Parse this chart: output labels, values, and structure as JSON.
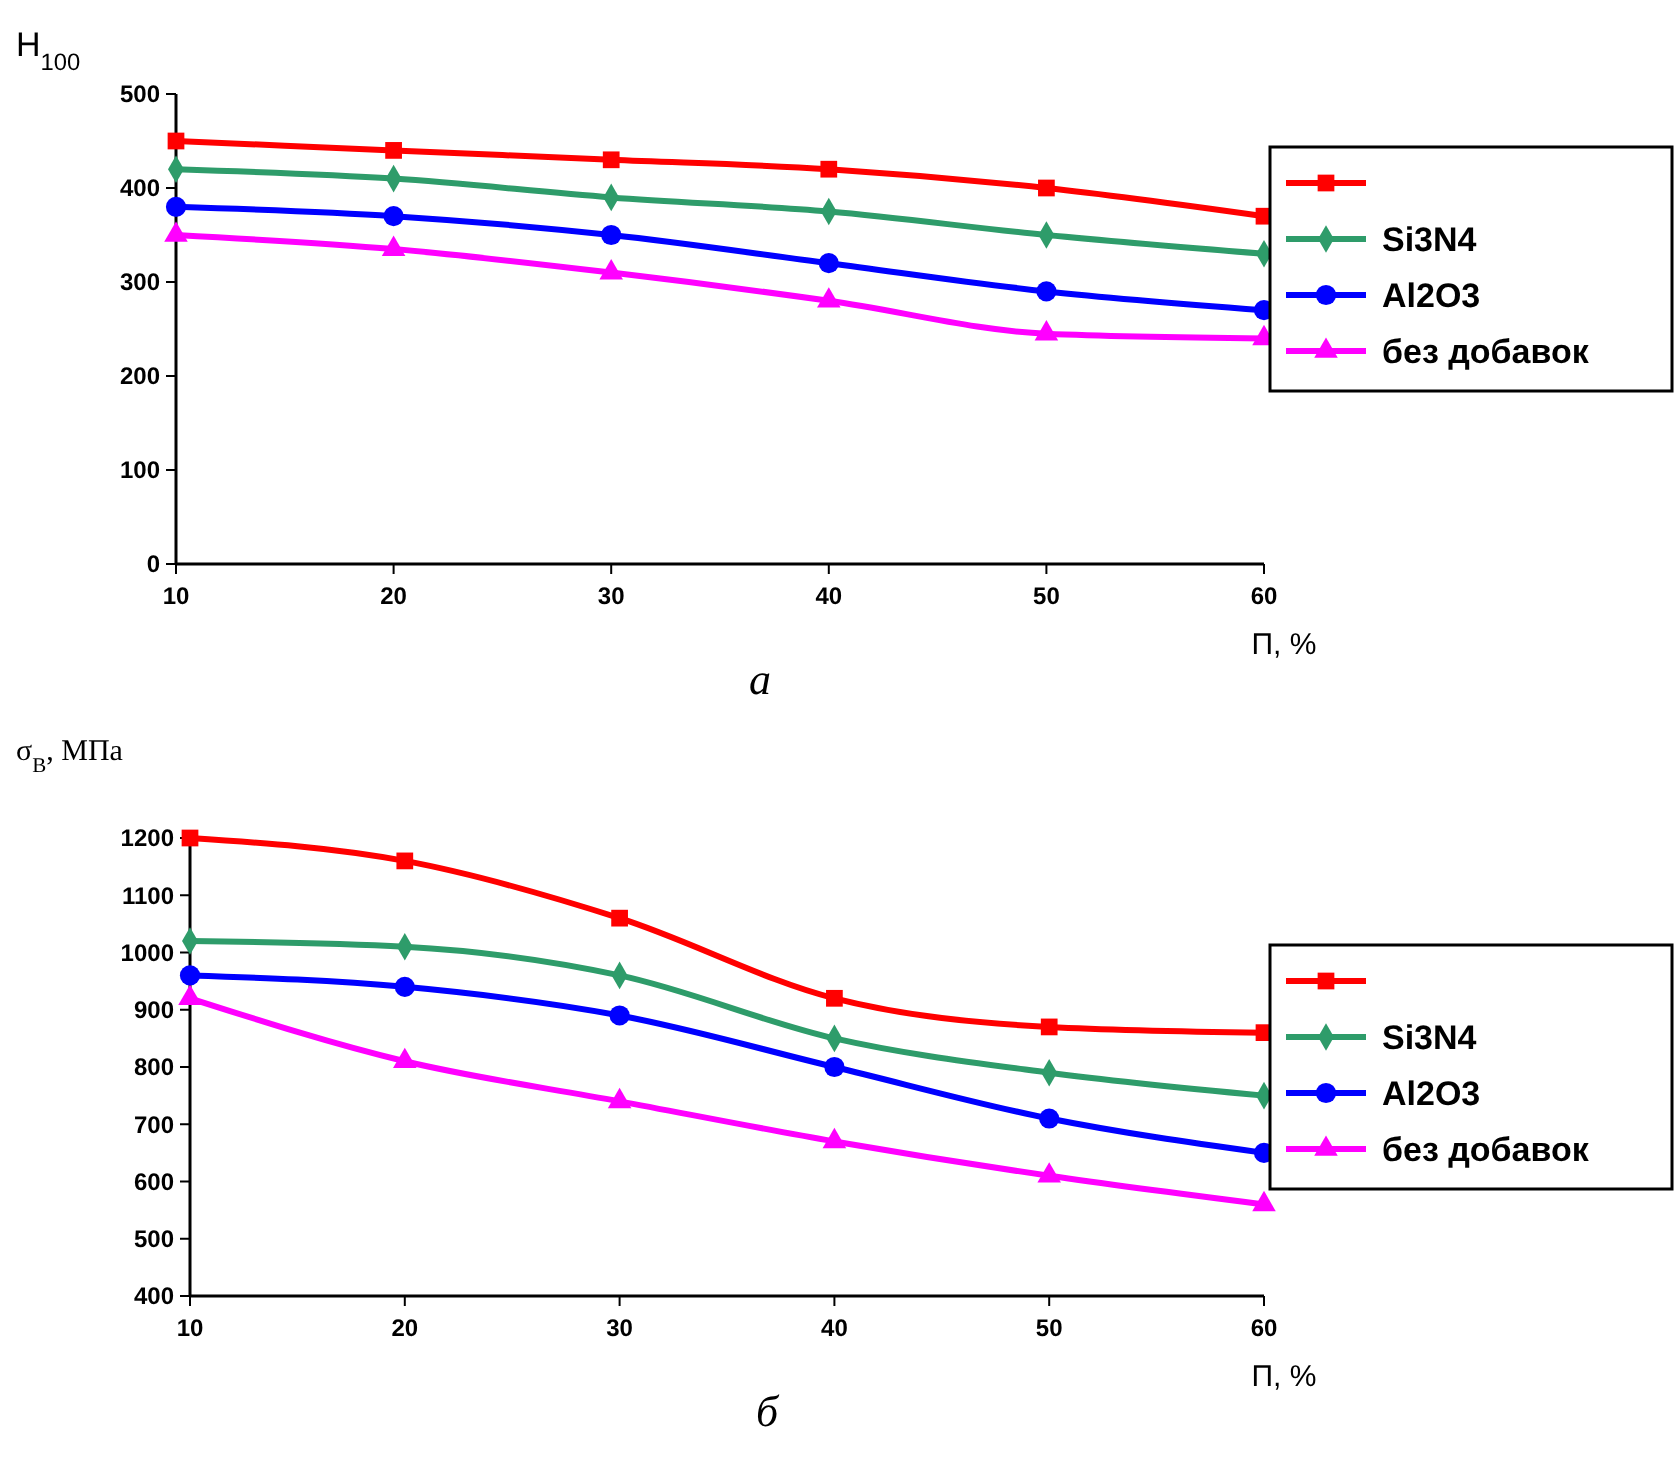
{
  "chart_data": [
    {
      "type": "line",
      "ylabel": "H$_{100}$",
      "xlabel": "П, %",
      "annotations": [
        "а"
      ],
      "x": [
        10,
        20,
        30,
        40,
        50,
        60
      ],
      "xlim": [
        10,
        60
      ],
      "xticks": [
        10,
        20,
        30,
        40,
        50,
        60
      ],
      "ylim": [
        0,
        500
      ],
      "yticks": [
        0,
        100,
        200,
        300,
        400,
        500
      ],
      "grid": false,
      "legend": "right",
      "line_style": "solid",
      "series": [
        {
          "color": "#ff0000",
          "marker": "square",
          "values": [
            450,
            440,
            430,
            420,
            400,
            370
          ]
        },
        {
          "name": "Si3N4",
          "color": "#2e9c6a",
          "marker": "diamond",
          "values": [
            420,
            410,
            390,
            375,
            350,
            330
          ]
        },
        {
          "name": "Al2O3",
          "color": "#0000ff",
          "marker": "circle",
          "values": [
            380,
            370,
            350,
            320,
            290,
            270
          ]
        },
        {
          "name": "без добавок",
          "color": "#ff00ff",
          "marker": "triangle",
          "values": [
            350,
            335,
            310,
            280,
            245,
            240
          ]
        }
      ]
    },
    {
      "type": "line",
      "ylabel": "σ$_{В}$, МПа",
      "xlabel": "П, %",
      "annotations": [
        "б"
      ],
      "x": [
        10,
        20,
        30,
        40,
        50,
        60
      ],
      "xlim": [
        10,
        60
      ],
      "xticks": [
        10,
        20,
        30,
        40,
        50,
        60
      ],
      "ylim": [
        400,
        1200
      ],
      "yticks": [
        400,
        500,
        600,
        700,
        800,
        900,
        1000,
        1100,
        1200
      ],
      "grid": false,
      "legend": "right",
      "line_style": "solid",
      "series": [
        {
          "color": "#ff0000",
          "marker": "square",
          "values": [
            1200,
            1160,
            1060,
            920,
            870,
            860
          ]
        },
        {
          "name": "Si3N4",
          "color": "#2e9c6a",
          "marker": "diamond",
          "values": [
            1020,
            1010,
            960,
            850,
            790,
            750
          ]
        },
        {
          "name": "Al2O3",
          "color": "#0000ff",
          "marker": "circle",
          "values": [
            960,
            940,
            890,
            800,
            710,
            650
          ]
        },
        {
          "name": "без добавок",
          "color": "#ff00ff",
          "marker": "triangle",
          "values": [
            920,
            810,
            740,
            670,
            610,
            560
          ]
        }
      ]
    }
  ]
}
